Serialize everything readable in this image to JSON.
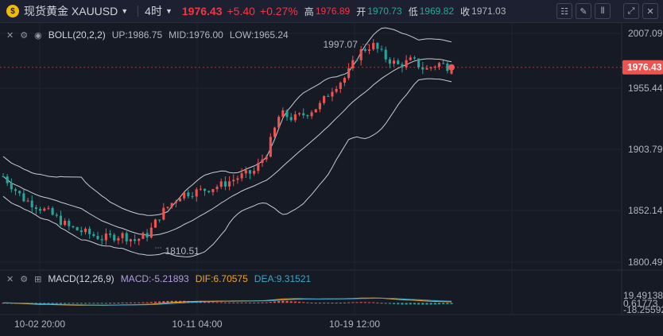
{
  "header": {
    "symbol": "现货黄金 XAUUSD",
    "timeframe": "4时",
    "last_price": "1976.43",
    "change": "+5.40",
    "change_pct": "+0.27%",
    "ohlc": [
      {
        "key": "高",
        "value": "1976.89",
        "tone": "red"
      },
      {
        "key": "开",
        "value": "1970.73",
        "tone": "green"
      },
      {
        "key": "低",
        "value": "1969.82",
        "tone": "green"
      },
      {
        "key": "收",
        "value": "1971.03",
        "tone": "gray"
      }
    ],
    "toolbar_icons": [
      "chart-settings-icon",
      "draw-icon",
      "indicators-icon",
      "fullscreen-icon",
      "close-icon"
    ]
  },
  "boll": {
    "name": "BOLL(20,2,2)",
    "up": "UP:1986.75",
    "mid": "MID:1976.00",
    "low": "LOW:1965.24"
  },
  "macd": {
    "name": "MACD(12,26,9)",
    "macd": "MACD:-5.21893",
    "dif": "DIF:6.70575",
    "dea": "DEA:9.31521"
  },
  "price_axis": {
    "ticks": [
      "2007.09",
      "1955.44",
      "1903.79",
      "1852.14",
      "1800.49"
    ],
    "current_tag": "1976.43"
  },
  "macd_axis": {
    "ticks": [
      "19.49138",
      "0.61773",
      "-18.25592"
    ]
  },
  "time_axis": {
    "ticks": [
      "10-02 20:00",
      "10-11 04:00",
      "10-19 12:00"
    ]
  },
  "annotations": {
    "high": "1997.07",
    "low": "1810.51"
  },
  "colors": {
    "up": "#ef5350",
    "down": "#26a69a",
    "dif": "#f5a623",
    "dea": "#3aa6c9",
    "boll": "#c9ccd4",
    "background": "#161a25"
  }
}
